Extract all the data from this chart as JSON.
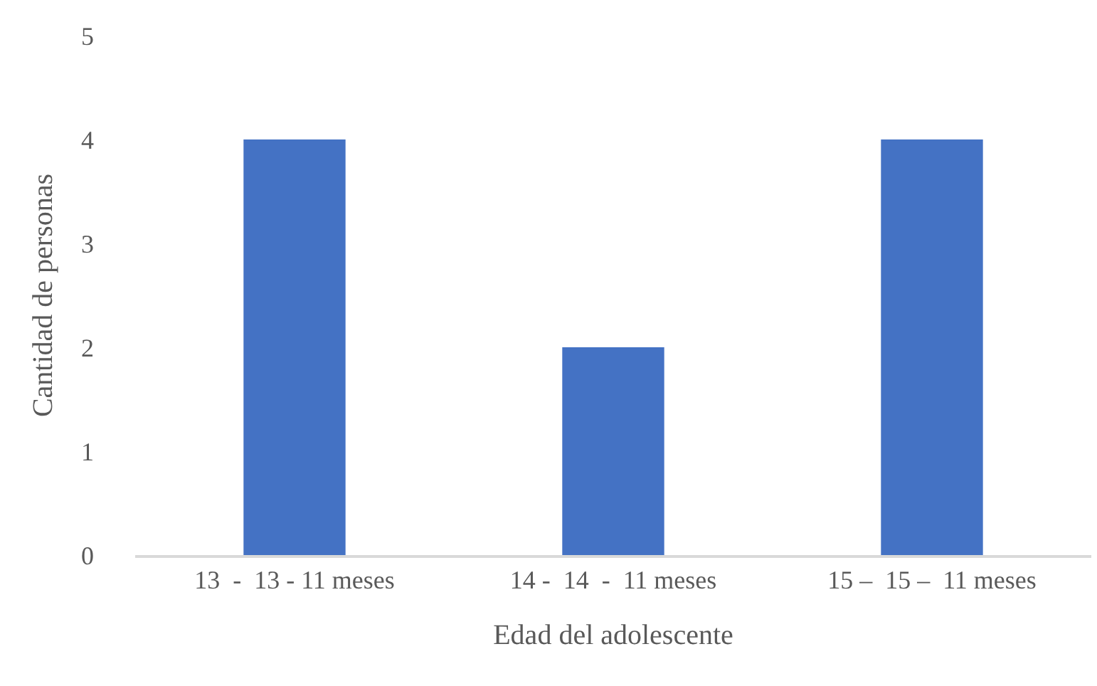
{
  "chart_data": {
    "type": "bar",
    "xlabel": "Edad del adolescente",
    "ylabel": "Cantidad de personas",
    "categories": [
      "13  -  13 - 11 meses",
      "14 -  14  -  11 meses",
      "15 –  15 –  11 meses"
    ],
    "values": [
      4,
      2,
      4
    ],
    "color": "#4472c4",
    "ylim": [
      0,
      5
    ],
    "yticks": [
      0,
      1,
      2,
      3,
      4,
      5
    ],
    "grid": false,
    "legend": false
  }
}
